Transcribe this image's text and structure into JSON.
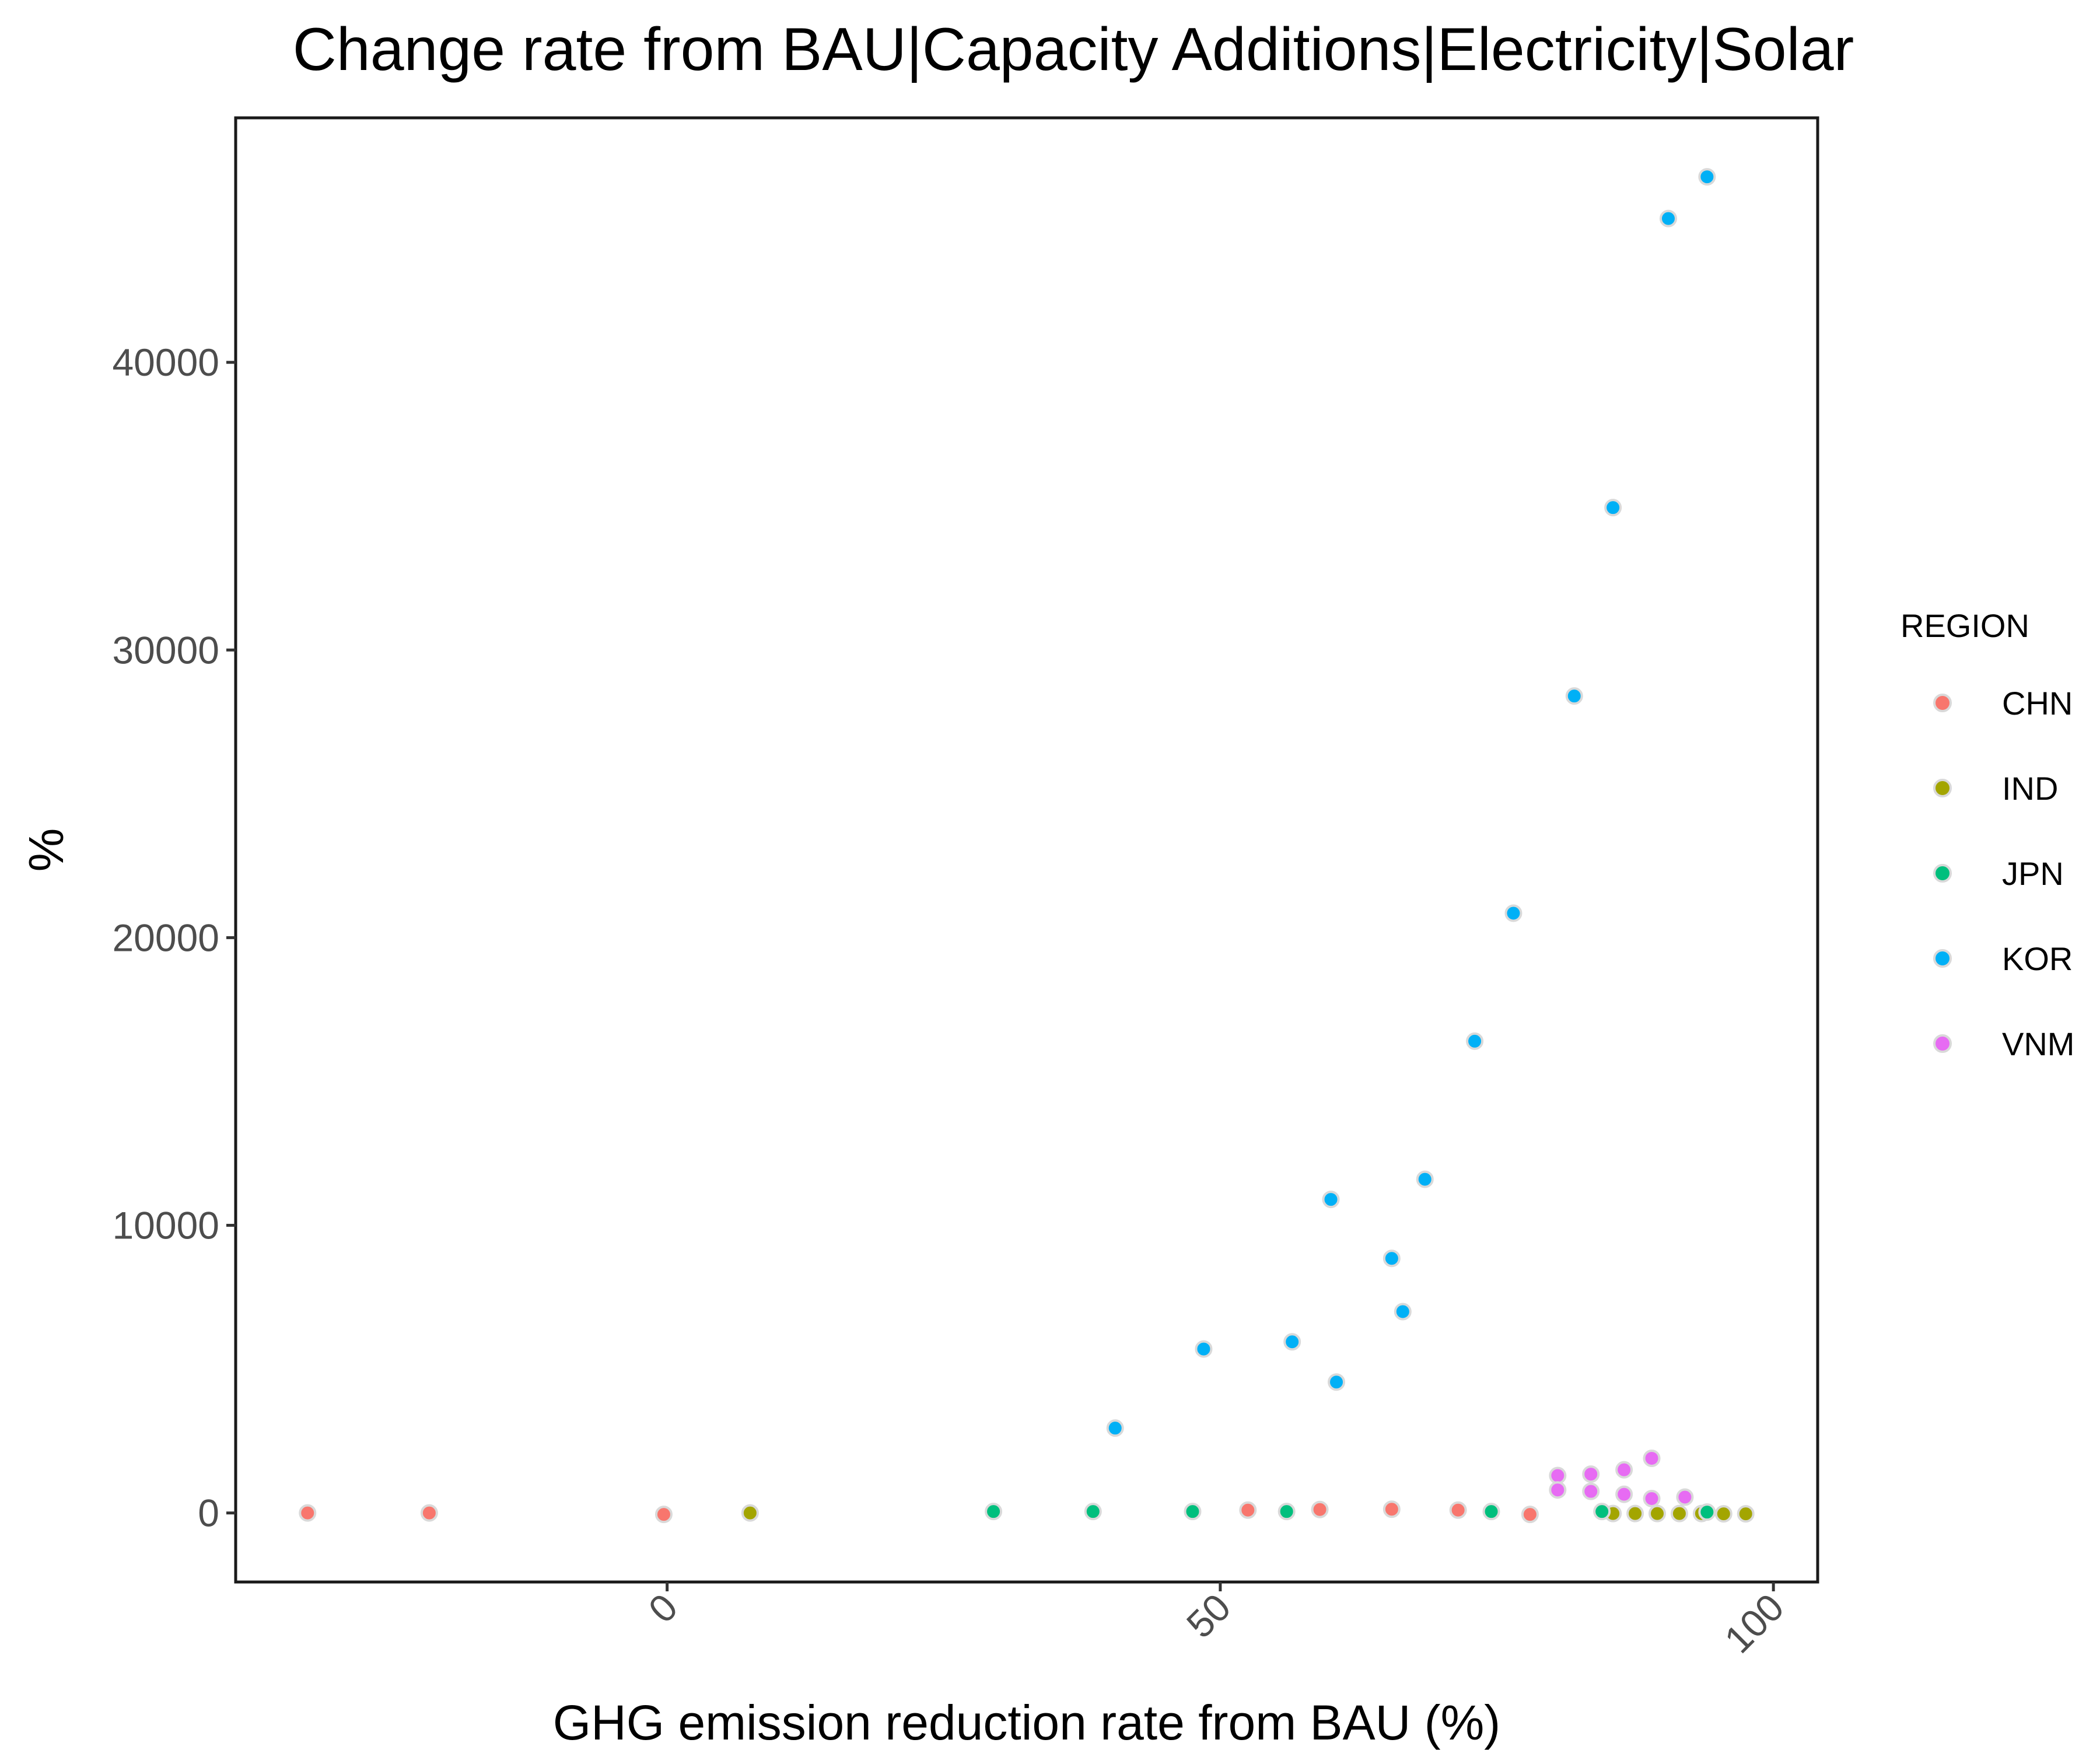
{
  "chart_data": {
    "type": "scatter",
    "title": "Change rate from BAU|Capacity Additions|Electricity|Solar",
    "xlabel": "GHG emission reduction rate from BAU (%)",
    "ylabel": "%",
    "xlim": [
      -39,
      104
    ],
    "ylim": [
      -2400,
      48500
    ],
    "x_ticks": [
      0,
      50,
      100
    ],
    "y_ticks": [
      0,
      10000,
      20000,
      30000,
      40000
    ],
    "grid": false,
    "legend": {
      "title": "REGION",
      "position": "right"
    },
    "series": [
      {
        "name": "CHN",
        "color": "#F8766D",
        "points": [
          [
            -32.5,
            0
          ],
          [
            -21.5,
            0
          ],
          [
            -0.3,
            -50
          ],
          [
            52.5,
            100
          ],
          [
            59,
            120
          ],
          [
            65.5,
            130
          ],
          [
            71.5,
            100
          ],
          [
            78,
            -50
          ]
        ]
      },
      {
        "name": "IND",
        "color": "#A3A500",
        "points": [
          [
            7.5,
            0
          ],
          [
            85.5,
            -20
          ],
          [
            87.5,
            -20
          ],
          [
            89.5,
            -20
          ],
          [
            91.5,
            -20
          ],
          [
            93.5,
            -20
          ],
          [
            95.5,
            -30
          ],
          [
            97.5,
            -30
          ]
        ]
      },
      {
        "name": "JPN",
        "color": "#00BF7D",
        "points": [
          [
            29.5,
            50
          ],
          [
            38.5,
            50
          ],
          [
            47.5,
            50
          ],
          [
            56,
            50
          ],
          [
            74.5,
            50
          ],
          [
            84.5,
            50
          ],
          [
            94,
            30
          ]
        ]
      },
      {
        "name": "KOR",
        "color": "#00B0F6",
        "points": [
          [
            40.5,
            2950
          ],
          [
            48.5,
            5700
          ],
          [
            56.5,
            5950
          ],
          [
            60.5,
            4550
          ],
          [
            60,
            10900
          ],
          [
            65.5,
            8850
          ],
          [
            66.5,
            7000
          ],
          [
            68.5,
            11600
          ],
          [
            73,
            16400
          ],
          [
            76.5,
            20850
          ],
          [
            82,
            28400
          ],
          [
            85.5,
            34950
          ],
          [
            90.5,
            45000
          ],
          [
            94,
            46450
          ]
        ]
      },
      {
        "name": "VNM",
        "color": "#E76BF3",
        "points": [
          [
            80.5,
            1300
          ],
          [
            80.5,
            800
          ],
          [
            83.5,
            1350
          ],
          [
            83.5,
            750
          ],
          [
            86.5,
            1500
          ],
          [
            86.5,
            650
          ],
          [
            89,
            1900
          ],
          [
            89,
            500
          ],
          [
            92,
            550
          ]
        ]
      }
    ]
  }
}
